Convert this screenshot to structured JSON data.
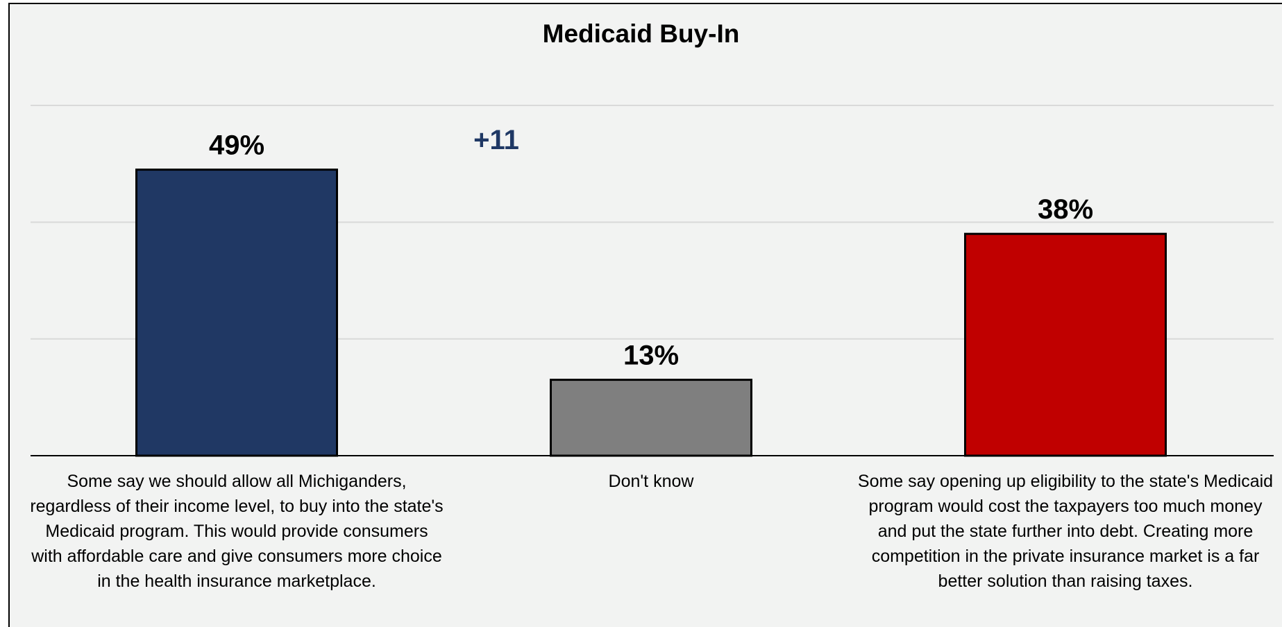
{
  "chart_data": {
    "type": "bar",
    "title": "Medicaid Buy-In",
    "categories": [
      "Some say we should allow all Michiganders, regardless of their income level, to buy into the state's Medicaid program.  This would provide consumers with affordable care and give consumers more choice in the health insurance marketplace.",
      "Don't know",
      "Some say opening up eligibility to the state's Medicaid program would cost the taxpayers too much money and put the state further into debt.  Creating more competition in the private insurance market is a far better solution than raising taxes."
    ],
    "values": [
      49,
      13,
      38
    ],
    "value_labels": [
      "49%",
      "13%",
      "38%"
    ],
    "colors": [
      "#203864",
      "#7f7f7f",
      "#c00000"
    ],
    "ylim": [
      0,
      60
    ],
    "grid": true,
    "annotation": "+11",
    "annotation_color": "#1f3864",
    "xlabel": "",
    "ylabel": ""
  }
}
